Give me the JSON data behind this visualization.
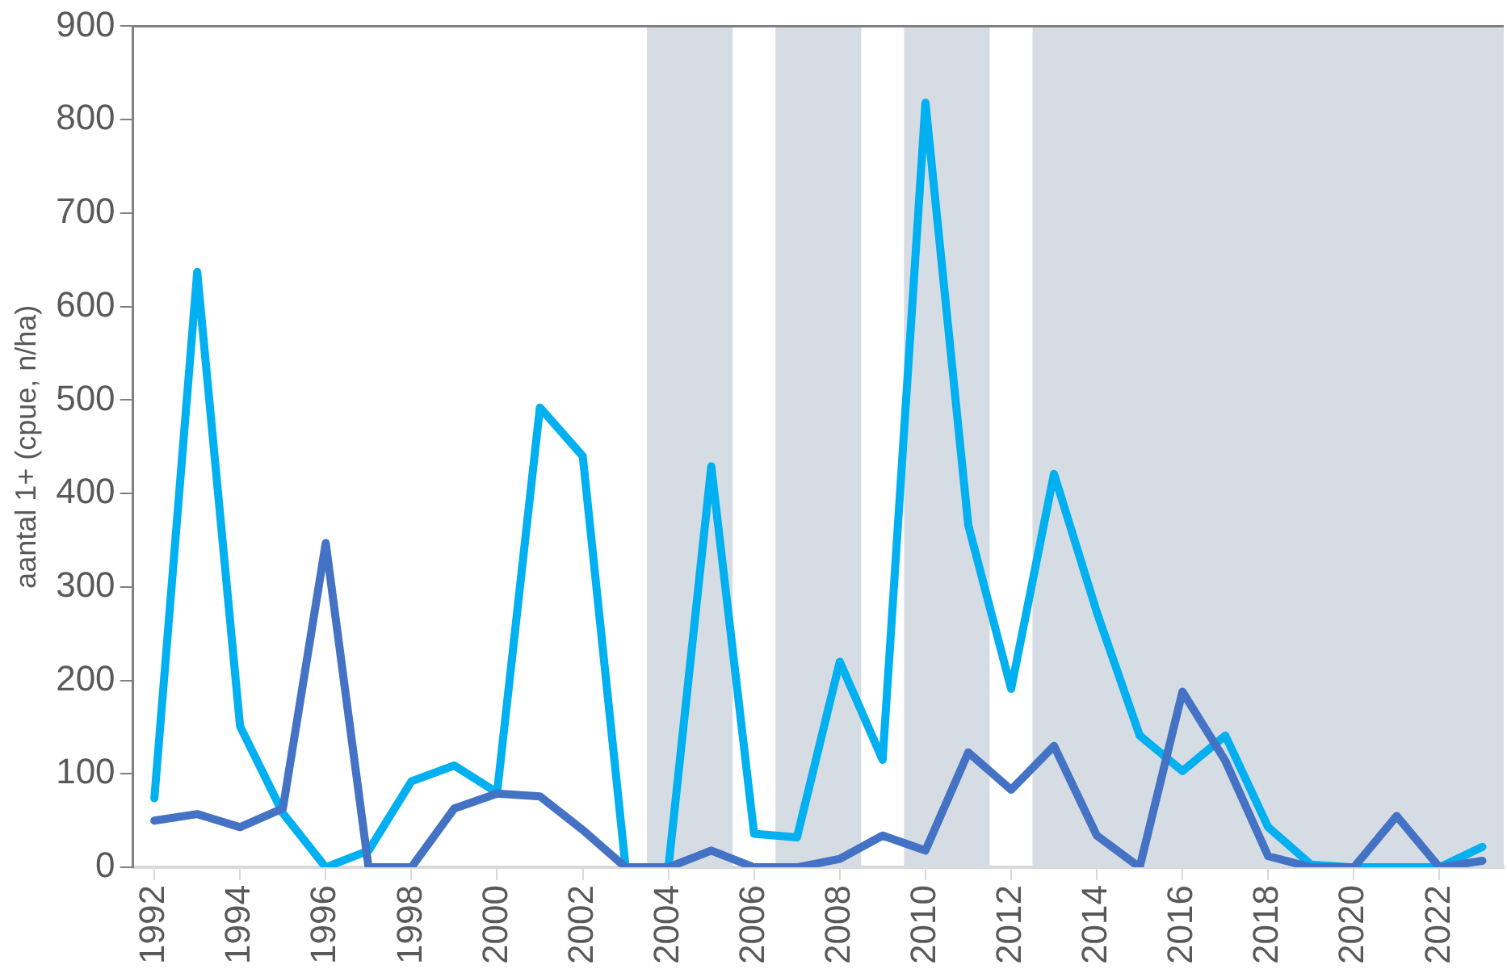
{
  "chart_data": {
    "type": "line",
    "ylabel": "aantal 1+ (cpue, n/ha)",
    "x": [
      1992,
      1993,
      1994,
      1995,
      1996,
      1997,
      1998,
      1999,
      2000,
      2001,
      2002,
      2003,
      2004,
      2005,
      2006,
      2007,
      2008,
      2009,
      2010,
      2011,
      2012,
      2013,
      2014,
      2015,
      2016,
      2017,
      2018,
      2019,
      2020,
      2021,
      2022,
      2023
    ],
    "series": [
      {
        "color": "#4472c4",
        "values": [
          50,
          57,
          43,
          63,
          347,
          0,
          0,
          63,
          79,
          76,
          40,
          0,
          0,
          18,
          0,
          0,
          9,
          34,
          18,
          123,
          83,
          130,
          34,
          0,
          188,
          114,
          12,
          0,
          0,
          55,
          0,
          7
        ]
      },
      {
        "color": "#00b0f0",
        "values": [
          74,
          637,
          151,
          58,
          0,
          18,
          92,
          109,
          80,
          492,
          440,
          0,
          0,
          429,
          36,
          32,
          220,
          115,
          818,
          366,
          191,
          421,
          273,
          141,
          103,
          141,
          43,
          3,
          0,
          0,
          0,
          22
        ]
      }
    ],
    "xlim": [
      1991.5,
      2023.5
    ],
    "xticks": [
      1992,
      1994,
      1996,
      1998,
      2000,
      2002,
      2004,
      2006,
      2008,
      2010,
      2012,
      2014,
      2016,
      2018,
      2020,
      2022
    ],
    "ylim": [
      0,
      900
    ],
    "yticks": [
      0,
      100,
      200,
      300,
      400,
      500,
      600,
      700,
      800,
      900
    ],
    "bands": [
      {
        "axis": "x",
        "from": 2003.5,
        "to": 2005.5,
        "color": "#d6dce4"
      },
      {
        "axis": "x",
        "from": 2006.5,
        "to": 2008.5,
        "color": "#d6dce4"
      },
      {
        "axis": "x",
        "from": 2009.5,
        "to": 2011.5,
        "color": "#d6dce4"
      },
      {
        "axis": "x",
        "from": 2012.5,
        "to": 2023.5,
        "color": "#d6dce4"
      }
    ],
    "grid": false,
    "legend": false,
    "marker": "none",
    "line_style": "solid"
  }
}
